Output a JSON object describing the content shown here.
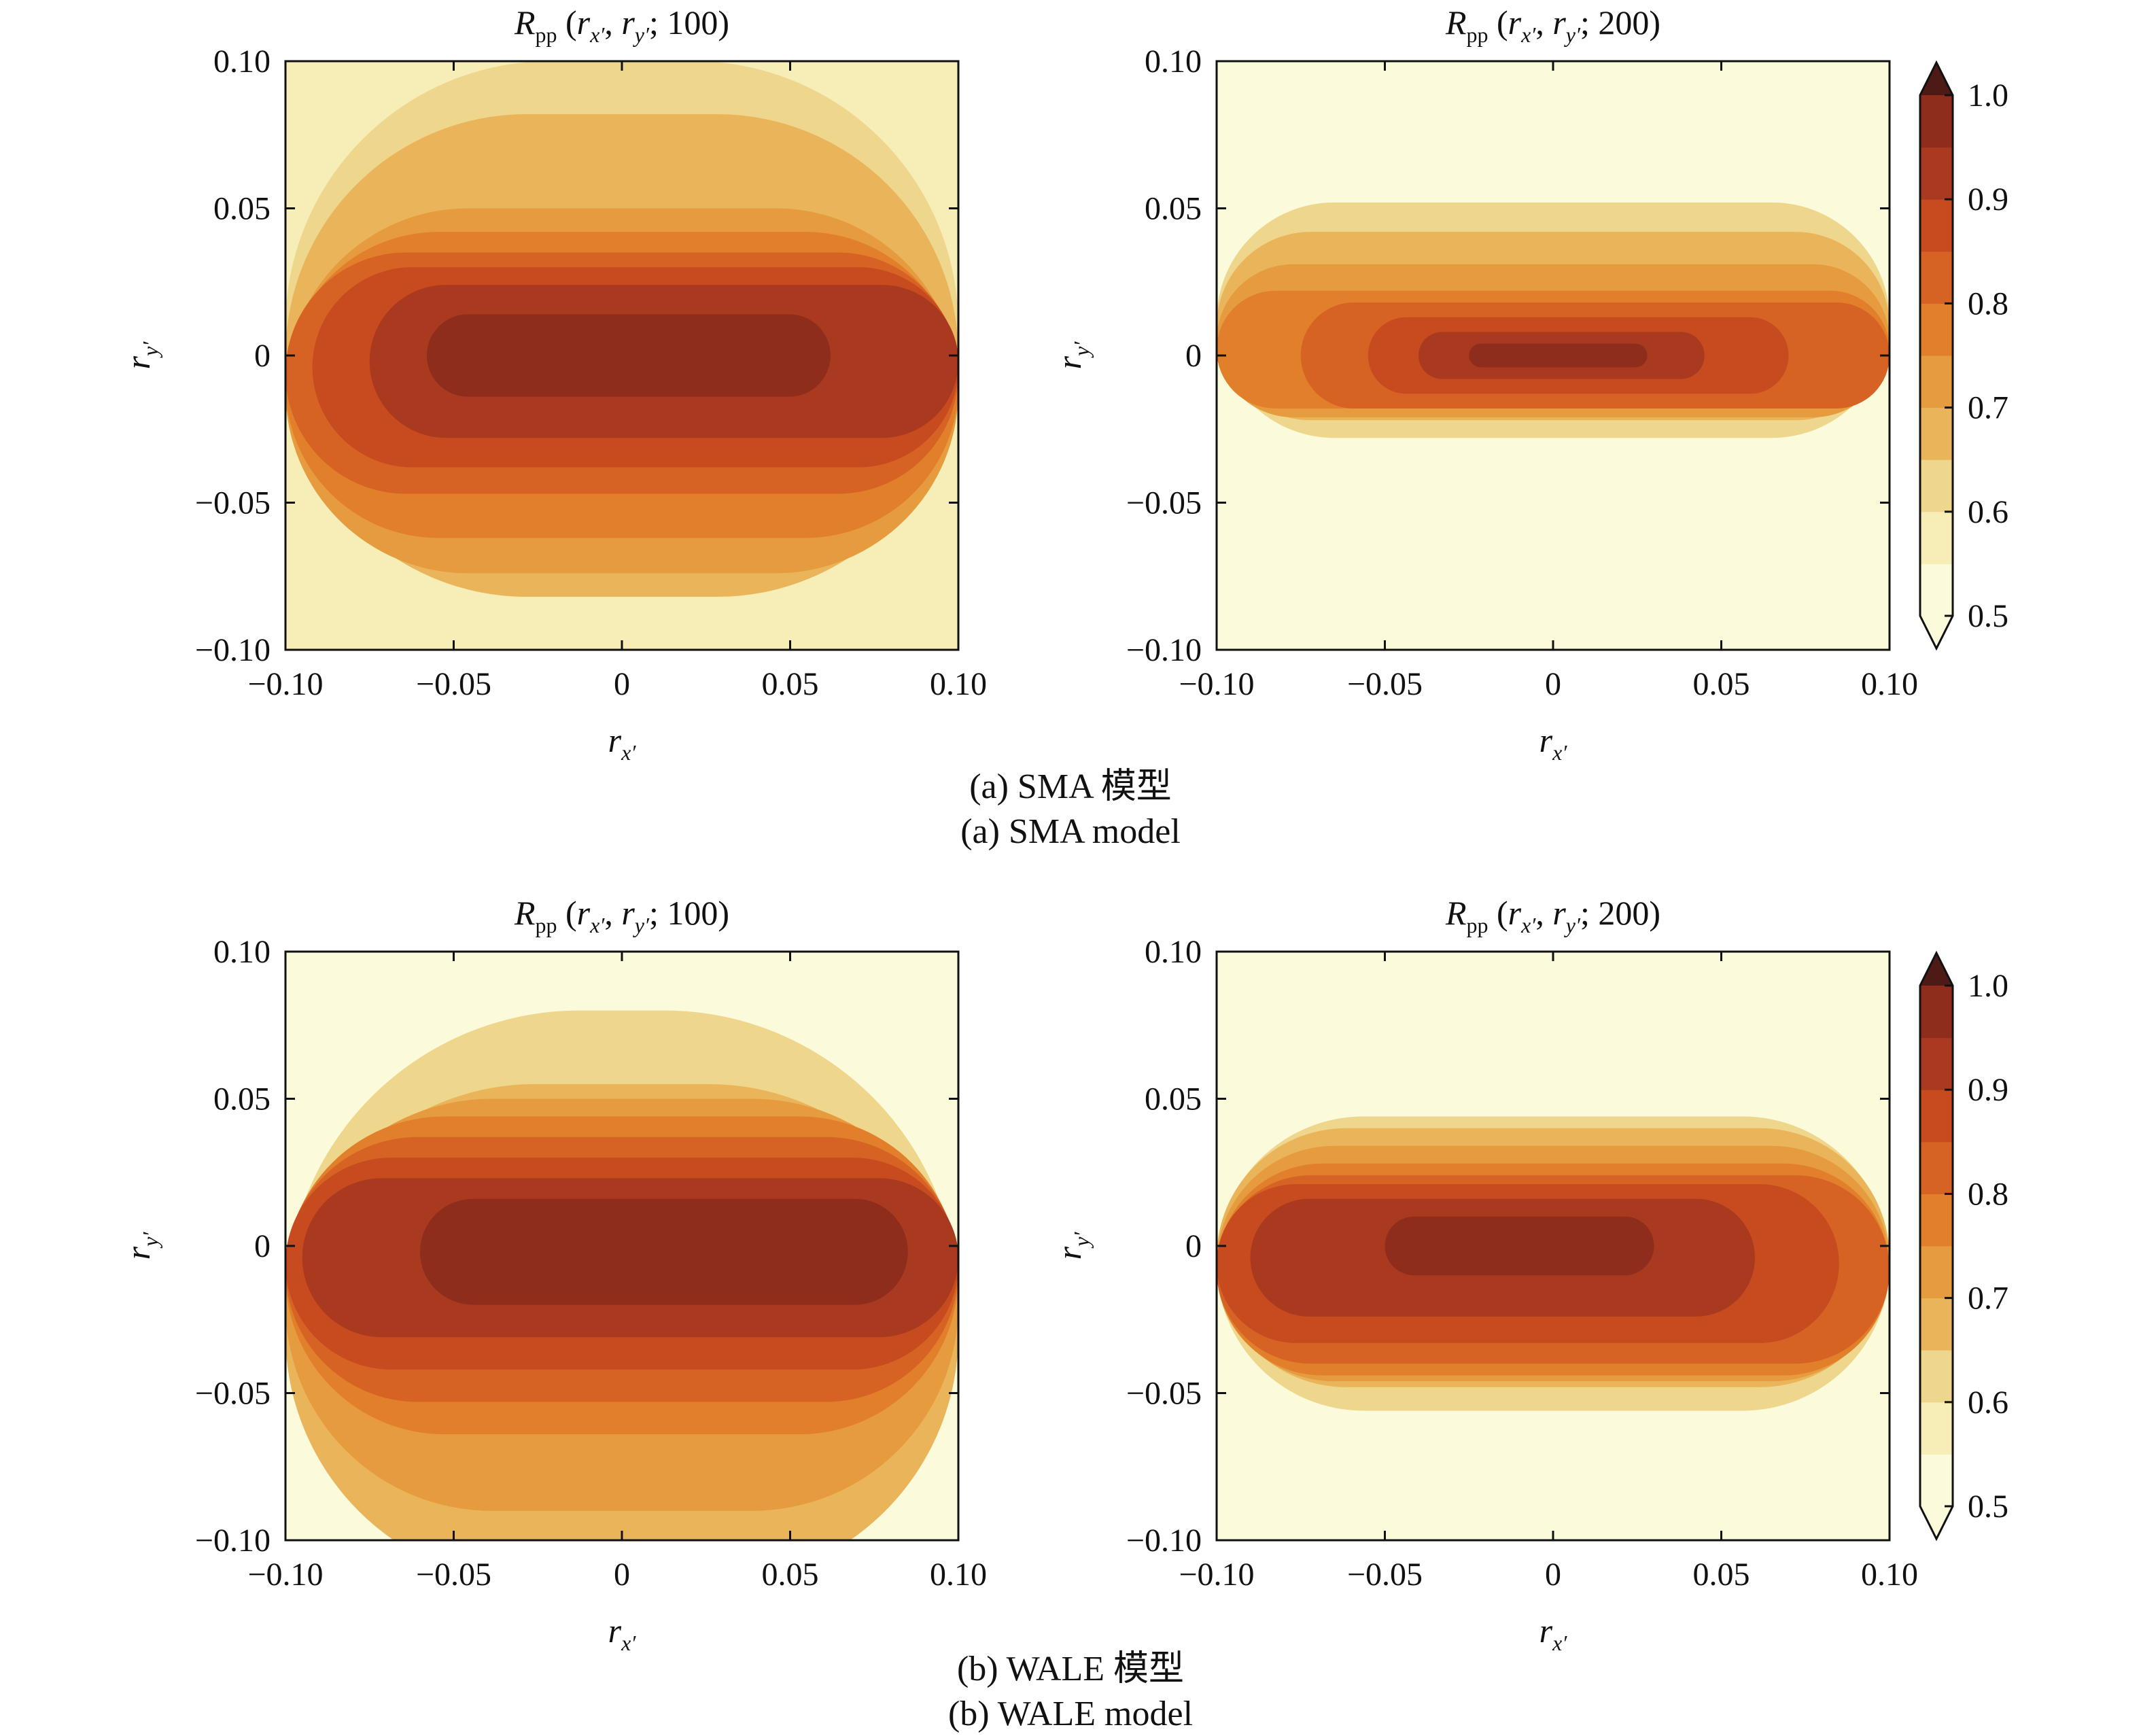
{
  "figure": {
    "caption_a_cn": "(a) SMA 模型",
    "caption_a_en": "(a) SMA model",
    "caption_b_cn": "(b) WALE 模型",
    "caption_b_en": "(b) WALE model"
  },
  "chart_data": [
    {
      "type": "heatmap",
      "id": "sma-100",
      "title": "Rpp (rx′, ry′; 100)",
      "title_parts": {
        "R": "R",
        "sub": "pp",
        "mid": " (",
        "rx": "r",
        "rxsub": "x′",
        "comma": ", ",
        "ry": "r",
        "rysub": "y′",
        "tail": "; 100)"
      },
      "xlabel": "rx′",
      "ylabel": "ry′",
      "xlim": [
        -0.1,
        0.1
      ],
      "ylim": [
        -0.1,
        0.1
      ],
      "xticks": [
        -0.1,
        -0.05,
        0,
        0.05,
        0.1
      ],
      "xtick_labels": [
        "−0.10",
        "−0.05",
        "0",
        "0.05",
        "0.10"
      ],
      "yticks": [
        -0.1,
        -0.05,
        0,
        0.05,
        0.1
      ],
      "ytick_labels": [
        "−0.10",
        "−0.05",
        "0",
        "0.05",
        "0.10"
      ],
      "bands": [
        {
          "level": 0.95,
          "y": 0.0,
          "half": 0.014,
          "x0": -0.058,
          "x1": 0.062
        },
        {
          "level": 0.9,
          "y": -0.002,
          "half": 0.026,
          "x0": -0.075,
          "x1": 0.1
        },
        {
          "level": 0.85,
          "y": -0.004,
          "half": 0.034,
          "x0": -0.092,
          "x1": 0.1
        },
        {
          "level": 0.8,
          "y": -0.006,
          "half": 0.041,
          "x0": -0.1,
          "x1": 0.1
        },
        {
          "level": 0.75,
          "y": -0.01,
          "half": 0.052,
          "x0": -0.1,
          "x1": 0.1
        },
        {
          "level": 0.7,
          "y": -0.012,
          "half": 0.062,
          "x0": -0.1,
          "x1": 0.1
        },
        {
          "level": 0.65,
          "y": 0.0,
          "half": 0.082,
          "x0": -0.1,
          "x1": 0.1
        },
        {
          "level": 0.6,
          "y": 0.01,
          "half": 0.09,
          "x0": -0.1,
          "x1": 0.1
        }
      ],
      "background_level": 0.55
    },
    {
      "type": "heatmap",
      "id": "sma-200",
      "title": "Rpp (rx′, ry′; 200)",
      "title_parts": {
        "R": "R",
        "sub": "pp",
        "mid": " (",
        "rx": "r",
        "rxsub": "x′",
        "comma": ", ",
        "ry": "r",
        "rysub": "y′",
        "tail": "; 200)"
      },
      "xlabel": "rx′",
      "ylabel": "ry′",
      "xlim": [
        -0.1,
        0.1
      ],
      "ylim": [
        -0.1,
        0.1
      ],
      "xticks": [
        -0.1,
        -0.05,
        0,
        0.05,
        0.1
      ],
      "xtick_labels": [
        "−0.10",
        "−0.05",
        "0",
        "0.05",
        "0.10"
      ],
      "yticks": [
        -0.1,
        -0.05,
        0,
        0.05,
        0.1
      ],
      "ytick_labels": [
        "−0.10",
        "−0.05",
        "0",
        "0.05",
        "0.10"
      ],
      "bands": [
        {
          "level": 0.95,
          "y": 0.0,
          "half": 0.004,
          "x0": -0.025,
          "x1": 0.028
        },
        {
          "level": 0.9,
          "y": 0.0,
          "half": 0.008,
          "x0": -0.04,
          "x1": 0.045
        },
        {
          "level": 0.85,
          "y": 0.0,
          "half": 0.013,
          "x0": -0.055,
          "x1": 0.07
        },
        {
          "level": 0.8,
          "y": 0.0,
          "half": 0.018,
          "x0": -0.075,
          "x1": 0.1
        },
        {
          "level": 0.75,
          "y": 0.002,
          "half": 0.02,
          "x0": -0.1,
          "x1": 0.1
        },
        {
          "level": 0.7,
          "y": 0.005,
          "half": 0.026,
          "x0": -0.1,
          "x1": 0.1
        },
        {
          "level": 0.65,
          "y": 0.01,
          "half": 0.032,
          "x0": -0.1,
          "x1": 0.1
        },
        {
          "level": 0.6,
          "y": 0.012,
          "half": 0.04,
          "x0": -0.1,
          "x1": 0.1
        }
      ],
      "background_level": 0.5
    },
    {
      "type": "heatmap",
      "id": "wale-100",
      "title": "Rpp (rx′, ry′; 100)",
      "title_parts": {
        "R": "R",
        "sub": "pp",
        "mid": " (",
        "rx": "r",
        "rxsub": "x′",
        "comma": ", ",
        "ry": "r",
        "rysub": "y′",
        "tail": "; 100)"
      },
      "xlabel": "rx′",
      "ylabel": "ry′",
      "xlim": [
        -0.1,
        0.1
      ],
      "ylim": [
        -0.1,
        0.1
      ],
      "xticks": [
        -0.1,
        -0.05,
        0,
        0.05,
        0.1
      ],
      "xtick_labels": [
        "−0.10",
        "−0.05",
        "0",
        "0.05",
        "0.10"
      ],
      "yticks": [
        -0.1,
        -0.05,
        0,
        0.05,
        0.1
      ],
      "ytick_labels": [
        "−0.10",
        "−0.05",
        "0",
        "0.05",
        "0.10"
      ],
      "bands": [
        {
          "level": 0.95,
          "y": -0.002,
          "half": 0.018,
          "x0": -0.06,
          "x1": 0.085
        },
        {
          "level": 0.9,
          "y": -0.004,
          "half": 0.027,
          "x0": -0.095,
          "x1": 0.1
        },
        {
          "level": 0.85,
          "y": -0.006,
          "half": 0.036,
          "x0": -0.1,
          "x1": 0.1
        },
        {
          "level": 0.8,
          "y": -0.008,
          "half": 0.045,
          "x0": -0.1,
          "x1": 0.1
        },
        {
          "level": 0.75,
          "y": -0.01,
          "half": 0.054,
          "x0": -0.1,
          "x1": 0.1
        },
        {
          "level": 0.7,
          "y": -0.02,
          "half": 0.07,
          "x0": -0.1,
          "x1": 0.1
        },
        {
          "level": 0.65,
          "y": -0.03,
          "half": 0.085,
          "x0": -0.1,
          "x1": 0.1
        },
        {
          "level": 0.6,
          "y": -0.02,
          "half": 0.1,
          "x0": -0.1,
          "x1": 0.1
        }
      ],
      "background_level": 0.5
    },
    {
      "type": "heatmap",
      "id": "wale-200",
      "title": "Rpp (rx′, ry′; 200)",
      "title_parts": {
        "R": "R",
        "sub": "pp",
        "mid": " (",
        "rx": "r",
        "rxsub": "x′",
        "comma": ", ",
        "ry": "r",
        "rysub": "y′",
        "tail": "; 200)"
      },
      "xlabel": "rx′",
      "ylabel": "ry′",
      "xlim": [
        -0.1,
        0.1
      ],
      "ylim": [
        -0.1,
        0.1
      ],
      "xticks": [
        -0.1,
        -0.05,
        0,
        0.05,
        0.1
      ],
      "xtick_labels": [
        "−0.10",
        "−0.05",
        "0",
        "0.05",
        "0.10"
      ],
      "yticks": [
        -0.1,
        -0.05,
        0,
        0.05,
        0.1
      ],
      "ytick_labels": [
        "−0.10",
        "−0.05",
        "0",
        "0.05",
        "0.10"
      ],
      "bands": [
        {
          "level": 0.95,
          "y": 0.0,
          "half": 0.01,
          "x0": -0.05,
          "x1": 0.03
        },
        {
          "level": 0.9,
          "y": -0.004,
          "half": 0.02,
          "x0": -0.09,
          "x1": 0.06
        },
        {
          "level": 0.85,
          "y": -0.006,
          "half": 0.027,
          "x0": -0.1,
          "x1": 0.085
        },
        {
          "level": 0.8,
          "y": -0.008,
          "half": 0.032,
          "x0": -0.1,
          "x1": 0.1
        },
        {
          "level": 0.75,
          "y": -0.008,
          "half": 0.036,
          "x0": -0.1,
          "x1": 0.1
        },
        {
          "level": 0.7,
          "y": -0.006,
          "half": 0.04,
          "x0": -0.1,
          "x1": 0.1
        },
        {
          "level": 0.65,
          "y": -0.004,
          "half": 0.044,
          "x0": -0.1,
          "x1": 0.1
        },
        {
          "level": 0.6,
          "y": -0.006,
          "half": 0.05,
          "x0": -0.1,
          "x1": 0.1
        }
      ],
      "background_level": 0.5
    }
  ],
  "colorbar": {
    "min": 0.5,
    "max": 1.0,
    "extend": "both",
    "levels": [
      0.5,
      0.55,
      0.6,
      0.65,
      0.7,
      0.75,
      0.8,
      0.85,
      0.9,
      0.95,
      1.0
    ],
    "tick_values": [
      0.5,
      0.6,
      0.7,
      0.8,
      0.9,
      1.0
    ],
    "tick_labels": [
      "0.5",
      "0.6",
      "0.7",
      "0.8",
      "0.9",
      "1.0"
    ],
    "colors": [
      "#fbfadb",
      "#f6edb7",
      "#efd68d",
      "#eab55a",
      "#e69b3e",
      "#e27f2a",
      "#d66224",
      "#c84b1f",
      "#a93a1f",
      "#8e2d1c",
      "#6a241f",
      "#4d1a16"
    ]
  }
}
